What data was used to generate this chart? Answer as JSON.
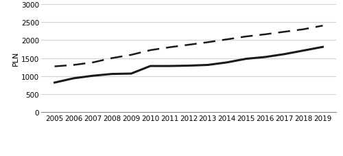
{
  "years": [
    2005,
    2006,
    2007,
    2008,
    2009,
    2010,
    2011,
    2012,
    2013,
    2014,
    2015,
    2016,
    2017,
    2018,
    2019
  ],
  "pension": [
    1270,
    1310,
    1380,
    1500,
    1590,
    1720,
    1800,
    1870,
    1940,
    2020,
    2100,
    2160,
    2230,
    2300,
    2400
  ],
  "disposable": [
    820,
    940,
    1010,
    1060,
    1070,
    1280,
    1280,
    1290,
    1310,
    1380,
    1480,
    1530,
    1610,
    1710,
    1810
  ],
  "ylabel": "PLN",
  "ylim": [
    0,
    3000
  ],
  "yticks": [
    0,
    500,
    1000,
    1500,
    2000,
    2500,
    3000
  ],
  "line_color": "#1a1a1a",
  "bg_color": "#ffffff",
  "grid_color": "#d0d0d0"
}
